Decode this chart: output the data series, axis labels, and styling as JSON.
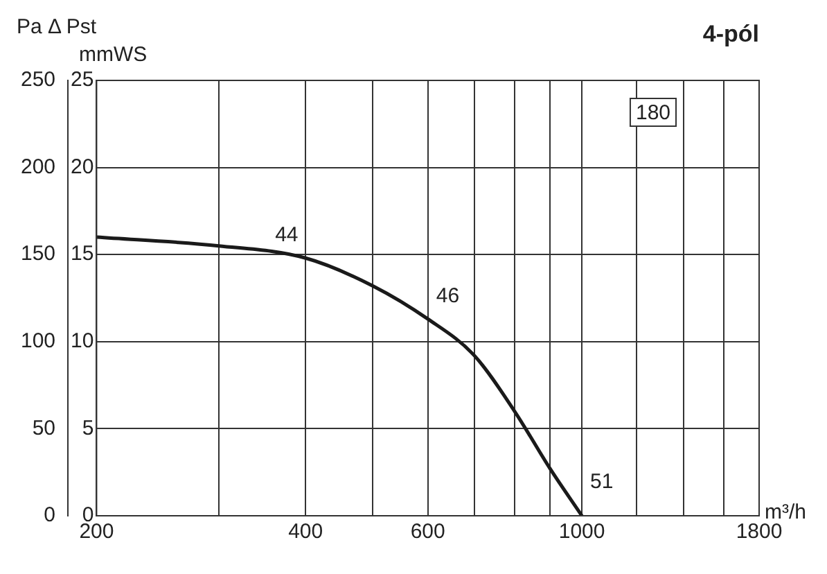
{
  "chart_data": {
    "type": "line",
    "title": "4-pól",
    "xlabel": "m³/h",
    "ylabel": "Pa Δ Pst",
    "y2label": "mmWS",
    "x": [
      200,
      300,
      400,
      500,
      600,
      700,
      800,
      900,
      1000
    ],
    "series": [
      {
        "color": "#1a1a1a",
        "values": [
          160,
          155,
          148,
          132,
          113,
          92,
          60,
          27,
          0
        ]
      }
    ],
    "log": "x",
    "xlim": [
      200,
      1800
    ],
    "xticks": [
      200,
      {
        "value": 300,
        "label": null
      },
      400,
      {
        "value": 500,
        "label": null
      },
      600,
      {
        "value": 700,
        "label": null
      },
      {
        "value": 800,
        "label": null
      },
      {
        "value": 900,
        "label": null
      },
      1000,
      {
        "value": 1200,
        "label": null
      },
      {
        "value": 1400,
        "label": null
      },
      {
        "value": 1600,
        "label": null
      },
      1800
    ],
    "ylim": [
      0,
      250
    ],
    "yticks": [
      0,
      50,
      100,
      150,
      200,
      250
    ],
    "y2lim": [
      0,
      25
    ],
    "y2ticks": [
      0,
      5,
      10,
      15,
      20,
      25
    ],
    "grid": true,
    "legend": false,
    "marker": "none",
    "line_style": "solid",
    "annotations": [
      {
        "text": "44",
        "x": 400,
        "y": 148
      },
      {
        "text": "46",
        "x": 600,
        "y": 113
      },
      {
        "text": "51",
        "x": 1000,
        "y": 0
      },
      "180"
    ]
  }
}
